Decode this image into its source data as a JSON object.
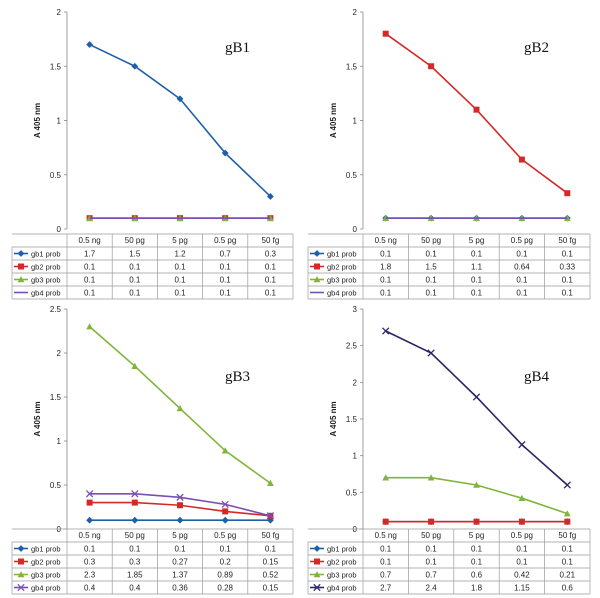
{
  "chart_data": [
    {
      "type": "line",
      "title": "gB1",
      "ylabel": "A 405 nm",
      "ylim": [
        0,
        2
      ],
      "yticks": [
        "0",
        "0.5",
        "1",
        "1.5",
        "2"
      ],
      "categories": [
        "0.5 ng",
        "50 pg",
        "5 pg",
        "0.5 pg",
        "50 fg"
      ],
      "series": [
        {
          "name": "gb1 prob",
          "values": [
            1.7,
            1.5,
            1.2,
            0.7,
            0.3
          ],
          "labels": [
            "1.7",
            "1.5",
            "1.2",
            "0.7",
            "0.3"
          ],
          "color": "#1f5fa8",
          "marker": "diamond"
        },
        {
          "name": "gb2 prob",
          "values": [
            0.1,
            0.1,
            0.1,
            0.1,
            0.1
          ],
          "labels": [
            "0.1",
            "0.1",
            "0.1",
            "0.1",
            "0.1"
          ],
          "color": "#d42a27",
          "marker": "square"
        },
        {
          "name": "gb3 prob",
          "values": [
            0.1,
            0.1,
            0.1,
            0.1,
            0.1
          ],
          "labels": [
            "0.1",
            "0.1",
            "0.1",
            "0.1",
            "0.1"
          ],
          "color": "#7fb539",
          "marker": "triangle"
        },
        {
          "name": "gb4 prob",
          "values": [
            0.1,
            0.1,
            0.1,
            0.1,
            0.1
          ],
          "labels": [
            "0.1",
            "0.1",
            "0.1",
            "0.1",
            "0.1"
          ],
          "color": "#7a4fb3",
          "marker": "none"
        }
      ]
    },
    {
      "type": "line",
      "title": "gB2",
      "ylabel": "A 405 nm",
      "ylim": [
        0,
        2
      ],
      "yticks": [
        "0",
        "0.5",
        "1",
        "1.5",
        "2"
      ],
      "categories": [
        "0.5 ng",
        "50 pg",
        "5 pg",
        "0.5 pg",
        "50 fg"
      ],
      "series": [
        {
          "name": "gb1 prob",
          "values": [
            0.1,
            0.1,
            0.1,
            0.1,
            0.1
          ],
          "labels": [
            "0.1",
            "0.1",
            "0.1",
            "0.1",
            "0.1"
          ],
          "color": "#1f5fa8",
          "marker": "diamond"
        },
        {
          "name": "gb2 prob",
          "values": [
            1.8,
            1.5,
            1.1,
            0.64,
            0.33
          ],
          "labels": [
            "1.8",
            "1.5",
            "1.1",
            "0.64",
            "0.33"
          ],
          "color": "#d42a27",
          "marker": "square"
        },
        {
          "name": "gb3 prob",
          "values": [
            0.1,
            0.1,
            0.1,
            0.1,
            0.1
          ],
          "labels": [
            "0.1",
            "0.1",
            "0.1",
            "0.1",
            "0.1"
          ],
          "color": "#7fb539",
          "marker": "triangle"
        },
        {
          "name": "gb4 prob",
          "values": [
            0.1,
            0.1,
            0.1,
            0.1,
            0.1
          ],
          "labels": [
            "0.1",
            "0.1",
            "0.1",
            "0.1",
            "0.1"
          ],
          "color": "#7a4fb3",
          "marker": "none"
        }
      ]
    },
    {
      "type": "line",
      "title": "gB3",
      "ylabel": "A 405 nm",
      "ylim": [
        0,
        2.5
      ],
      "yticks": [
        "0",
        "0.5",
        "1",
        "1.5",
        "2",
        "2.5"
      ],
      "categories": [
        "0.5 ng",
        "50 pg",
        "5 pg",
        "0.5 pg",
        "50 fg"
      ],
      "series": [
        {
          "name": "gb1 prob",
          "values": [
            0.1,
            0.1,
            0.1,
            0.1,
            0.1
          ],
          "labels": [
            "0.1",
            "0.1",
            "0.1",
            "0.1",
            "0.1"
          ],
          "color": "#1f5fa8",
          "marker": "diamond"
        },
        {
          "name": "gb2 prob",
          "values": [
            0.3,
            0.3,
            0.27,
            0.2,
            0.15
          ],
          "labels": [
            "0.3",
            "0.3",
            "0.27",
            "0.2",
            "0.15"
          ],
          "color": "#d42a27",
          "marker": "square"
        },
        {
          "name": "gb3 prob",
          "values": [
            2.3,
            1.85,
            1.37,
            0.89,
            0.52
          ],
          "labels": [
            "2.3",
            "1.85",
            "1.37",
            "0.89",
            "0.52"
          ],
          "color": "#7fb539",
          "marker": "triangle"
        },
        {
          "name": "gb4 prob",
          "values": [
            0.4,
            0.4,
            0.36,
            0.28,
            0.15
          ],
          "labels": [
            "0.4",
            "0.4",
            "0.36",
            "0.28",
            "0.15"
          ],
          "color": "#7a4fb3",
          "marker": "x"
        }
      ]
    },
    {
      "type": "line",
      "title": "gB4",
      "ylabel": "A 405 nm",
      "ylim": [
        0,
        3
      ],
      "yticks": [
        "0",
        "0.5",
        "1",
        "1.5",
        "2",
        "2.5",
        "3"
      ],
      "categories": [
        "0.5 ng",
        "50 pg",
        "5 pg",
        "0.5 pg",
        "50 fg"
      ],
      "series": [
        {
          "name": "gb1 prob",
          "values": [
            0.1,
            0.1,
            0.1,
            0.1,
            0.1
          ],
          "labels": [
            "0.1",
            "0.1",
            "0.1",
            "0.1",
            "0.1"
          ],
          "color": "#1f5fa8",
          "marker": "diamond"
        },
        {
          "name": "gb2 prob",
          "values": [
            0.1,
            0.1,
            0.1,
            0.1,
            0.1
          ],
          "labels": [
            "0.1",
            "0.1",
            "0.1",
            "0.1",
            "0.1"
          ],
          "color": "#d42a27",
          "marker": "square"
        },
        {
          "name": "gb3 prob",
          "values": [
            0.7,
            0.7,
            0.6,
            0.42,
            0.21
          ],
          "labels": [
            "0.7",
            "0.7",
            "0.6",
            "0.42",
            "0.21"
          ],
          "color": "#7fb539",
          "marker": "triangle"
        },
        {
          "name": "gb4 prob",
          "values": [
            2.7,
            2.4,
            1.8,
            1.15,
            0.6
          ],
          "labels": [
            "2.7",
            "2.4",
            "1.8",
            "1.15",
            "0.6"
          ],
          "color": "#2b2466",
          "marker": "x"
        }
      ]
    }
  ]
}
